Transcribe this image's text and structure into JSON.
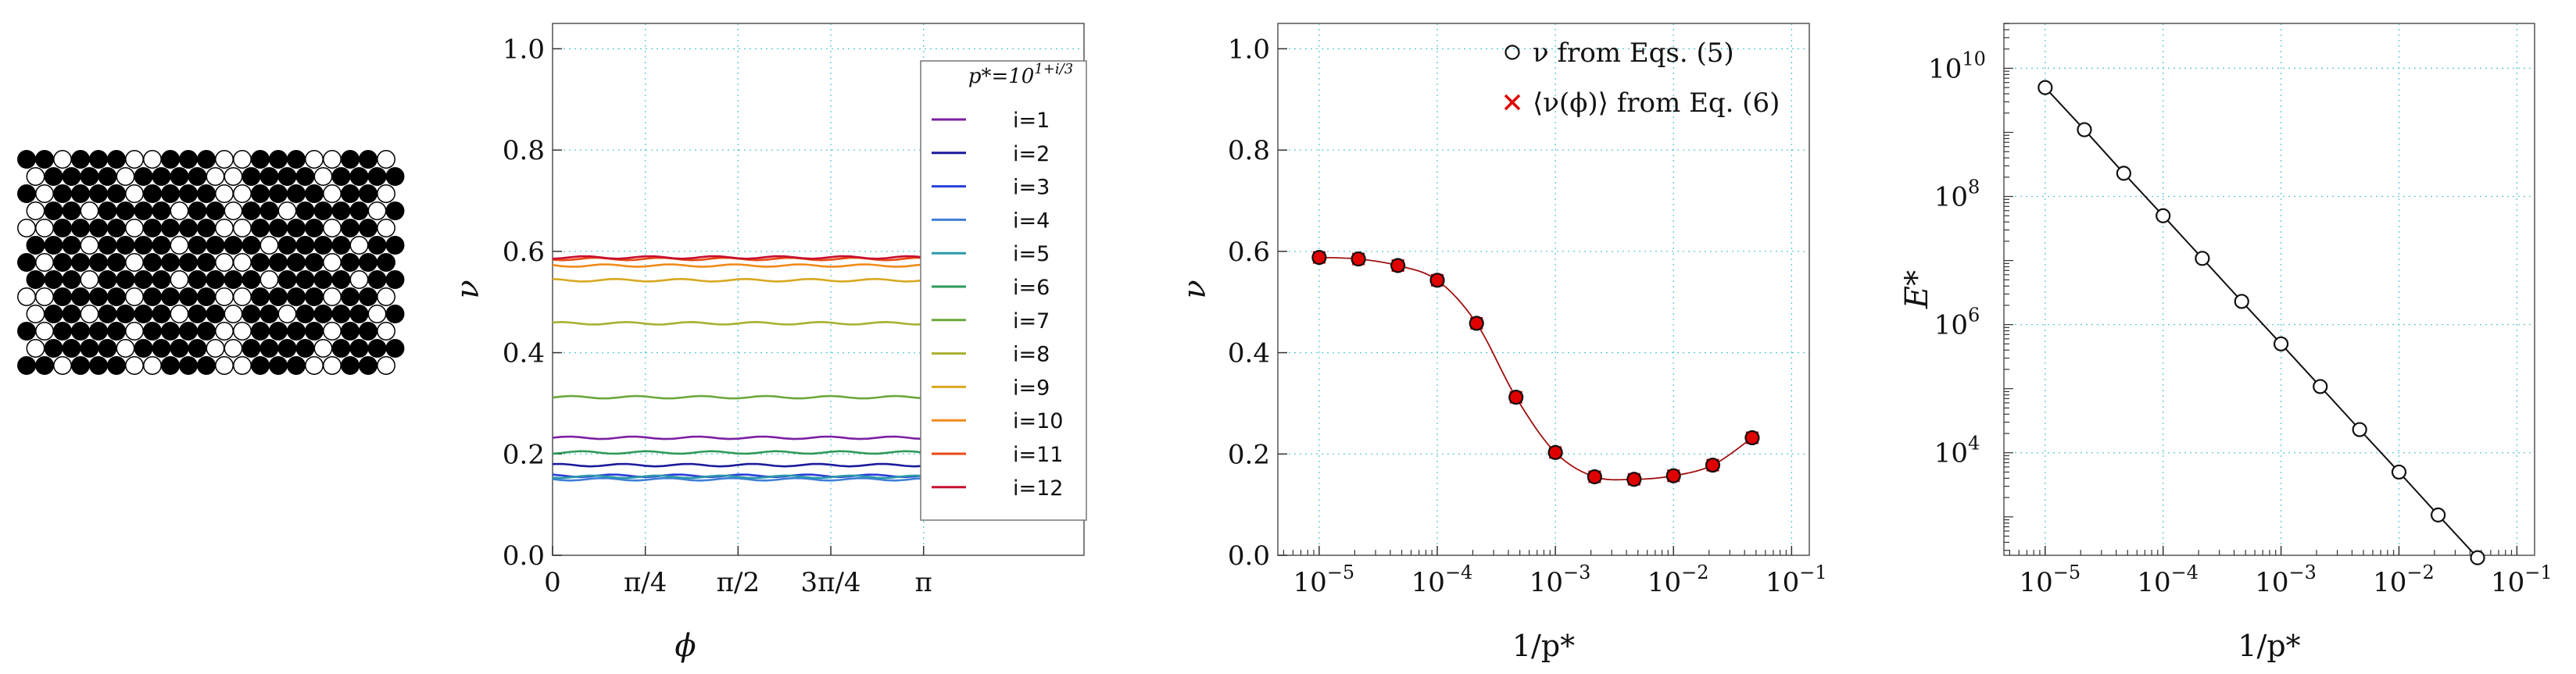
{
  "lattice": {
    "rows": [
      "●●○●●●○○●●●○○●●●○○●●○",
      "○●●●●○●●●●○○●●●●○●●●●",
      "●○●●●●○●●●●○○●●●●○●●○",
      "○●●○●●●●○●●○●●○●●●●○●",
      "○○●●●●○●●●●○○●●●●○●●○",
      "●●●○●●●●○●●●●○●●●●○●●",
      "●○●●●●○●●●●○○●●●●○●●●",
      "●●●○●●●●○●●●●○●●●●○●●",
      "○○●●●●○●●●●○○●●●●○●●○",
      "○●●○●●●●○●●○●●○●●●●○●",
      "●○●●●●○●●●●○○●●●●○●●○",
      "○●●●●○●●●●○○●●●●○●●●●",
      "●●○●●●○○●●●○○●●●○○●●○"
    ]
  },
  "chart_data": [
    {
      "type": "line",
      "xlabel": "ϕ",
      "ylabel": "ν",
      "xlim": [
        0,
        4.5
      ],
      "ylim": [
        0,
        1.05
      ],
      "x_ticks": [
        {
          "value": 0,
          "label": "0"
        },
        {
          "value": 0.7854,
          "label": "π/4"
        },
        {
          "value": 1.5708,
          "label": "π/2"
        },
        {
          "value": 2.3562,
          "label": "3π/4"
        },
        {
          "value": 3.1416,
          "label": "π"
        }
      ],
      "y_ticks": [
        "0.0",
        "0.2",
        "0.4",
        "0.6",
        "0.8",
        "1.0"
      ],
      "grid": true,
      "legend_title": "p*=10^{1+i/3}",
      "legend_position": "right",
      "x_range": [
        0,
        3.1416
      ],
      "series": [
        {
          "name": "i=1",
          "color": "#7b1fa2",
          "value": 0.232
        },
        {
          "name": "i=2",
          "color": "#1a1a9c",
          "value": 0.178
        },
        {
          "name": "i=3",
          "color": "#2a3fd8",
          "value": 0.157
        },
        {
          "name": "i=4",
          "color": "#3f7fd8",
          "value": 0.15
        },
        {
          "name": "i=5",
          "color": "#2a9aa8",
          "value": 0.155
        },
        {
          "name": "i=6",
          "color": "#2f9a5a",
          "value": 0.203
        },
        {
          "name": "i=7",
          "color": "#6aa83a",
          "value": 0.312
        },
        {
          "name": "i=8",
          "color": "#a8b030",
          "value": 0.458
        },
        {
          "name": "i=9",
          "color": "#d8a820",
          "value": 0.543
        },
        {
          "name": "i=10",
          "color": "#f08a1a",
          "value": 0.572
        },
        {
          "name": "i=11",
          "color": "#e84a14",
          "value": 0.585
        },
        {
          "name": "i=12",
          "color": "#c8102e",
          "value": 0.588
        }
      ]
    },
    {
      "type": "scatter",
      "xlabel": "1/p*",
      "ylabel": "ν",
      "x_scale": "log",
      "xlim_exp": [
        -5.35,
        -0.85
      ],
      "ylim": [
        0,
        1.05
      ],
      "x_ticks": [
        {
          "exp": -5,
          "label": "10"
        },
        {
          "exp": -4,
          "label": "10"
        },
        {
          "exp": -3,
          "label": "10"
        },
        {
          "exp": -2,
          "label": "10"
        },
        {
          "exp": -1,
          "label": "10"
        }
      ],
      "x_tick_sup": [
        "−5",
        "−4",
        "−3",
        "−2",
        "−1"
      ],
      "y_ticks": [
        "0.0",
        "0.2",
        "0.4",
        "0.6",
        "0.8",
        "1.0"
      ],
      "grid": true,
      "legend_position": "top-right",
      "legend": [
        {
          "symbol": "open-circle",
          "color": "#111111",
          "label": "ν from Eqs. (5)"
        },
        {
          "symbol": "cross",
          "color": "#e00000",
          "label": "⟨ν(ϕ)⟩ from Eq. (6)"
        }
      ],
      "fit_color": "#a01010",
      "x": [
        1e-05,
        2.15e-05,
        4.64e-05,
        0.0001,
        0.000215,
        0.000464,
        0.001,
        0.00215,
        0.00464,
        0.01,
        0.0215,
        0.0464
      ],
      "y": [
        0.588,
        0.585,
        0.572,
        0.543,
        0.458,
        0.312,
        0.203,
        0.155,
        0.15,
        0.157,
        0.178,
        0.232
      ]
    },
    {
      "type": "line",
      "xlabel": "1/p*",
      "ylabel": "E*",
      "x_scale": "log",
      "y_scale": "log",
      "xlim_exp": [
        -5.35,
        -0.85
      ],
      "ylim_exp": [
        2.4,
        10.7
      ],
      "x_ticks": [
        {
          "exp": -5,
          "label": "10"
        },
        {
          "exp": -4,
          "label": "10"
        },
        {
          "exp": -3,
          "label": "10"
        },
        {
          "exp": -2,
          "label": "10"
        },
        {
          "exp": -1,
          "label": "10"
        }
      ],
      "x_tick_sup": [
        "−5",
        "−4",
        "−3",
        "−2",
        "−1"
      ],
      "y_ticks": [
        {
          "exp": 4,
          "label": "10",
          "sup": "4"
        },
        {
          "exp": 6,
          "label": "10",
          "sup": "6"
        },
        {
          "exp": 8,
          "label": "10",
          "sup": "8"
        },
        {
          "exp": 10,
          "label": "10",
          "sup": "10"
        }
      ],
      "grid": true,
      "x": [
        1e-05,
        2.15e-05,
        4.64e-05,
        0.0001,
        0.000215,
        0.000464,
        0.001,
        0.00215,
        0.00464,
        0.01,
        0.0215,
        0.0464
      ],
      "y": [
        5000000000.0,
        1100000000.0,
        230000000.0,
        50000000.0,
        10800000.0,
        2300000.0,
        500000.0,
        108000.0,
        23000.0,
        5000.0,
        1070.0,
        230.0
      ]
    }
  ]
}
